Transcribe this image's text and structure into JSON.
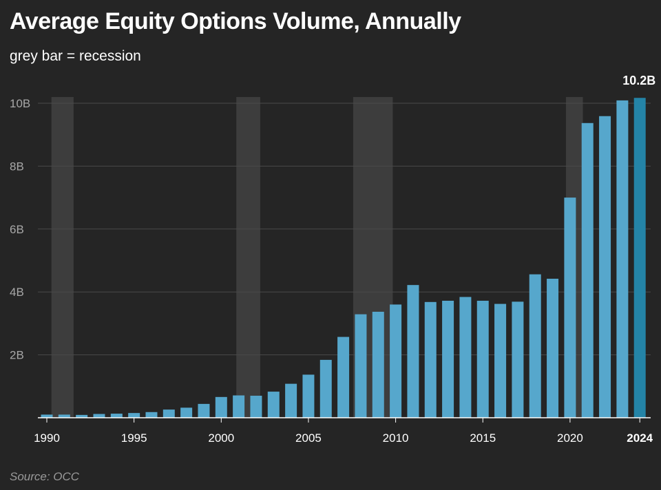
{
  "title": "Average Equity Options Volume, Annually",
  "subtitle": "grey bar = recession",
  "source": "Source: OCC",
  "colors": {
    "background": "#252525",
    "bar": "#56a7cc",
    "bar_highlight": "#2484a7",
    "recession": "#3d3d3d",
    "grid": "#4a4a4a"
  },
  "chart_data": {
    "type": "bar",
    "title": "Average Equity Options Volume, Annually",
    "subtitle": "grey bar = recession",
    "xlabel": "",
    "ylabel": "",
    "ylim": [
      0,
      10
    ],
    "unit": "B",
    "categories": [
      "1990",
      "1991",
      "1992",
      "1993",
      "1994",
      "1995",
      "1996",
      "1997",
      "1998",
      "1999",
      "2000",
      "2001",
      "2002",
      "2003",
      "2004",
      "2005",
      "2006",
      "2007",
      "2008",
      "2009",
      "2010",
      "2011",
      "2012",
      "2013",
      "2014",
      "2015",
      "2016",
      "2017",
      "2018",
      "2019",
      "2020",
      "2021",
      "2022",
      "2023",
      "2024"
    ],
    "values": [
      0.1,
      0.1,
      0.09,
      0.12,
      0.13,
      0.15,
      0.18,
      0.26,
      0.32,
      0.44,
      0.66,
      0.71,
      0.7,
      0.83,
      1.08,
      1.37,
      1.84,
      2.57,
      3.29,
      3.37,
      3.6,
      4.22,
      3.68,
      3.72,
      3.84,
      3.72,
      3.62,
      3.69,
      4.56,
      4.42,
      7.0,
      9.37,
      9.59,
      10.09,
      10.17
    ],
    "highlight_category": "2024",
    "highlight_label": "10.2B",
    "y_ticks": [
      {
        "value": 2,
        "label": "2B"
      },
      {
        "value": 4,
        "label": "4B"
      },
      {
        "value": 6,
        "label": "6B"
      },
      {
        "value": 8,
        "label": "8B"
      },
      {
        "value": 10,
        "label": "10B"
      }
    ],
    "x_ticks": [
      {
        "year": 1990,
        "label": "1990"
      },
      {
        "year": 1995,
        "label": "1995"
      },
      {
        "year": 2000,
        "label": "2000"
      },
      {
        "year": 2005,
        "label": "2005"
      },
      {
        "year": 2010,
        "label": "2010"
      },
      {
        "year": 2015,
        "label": "2015"
      },
      {
        "year": 2020,
        "label": "2020"
      },
      {
        "year": 2024,
        "label": "2024",
        "bold": true
      }
    ],
    "recessions": [
      {
        "start": 1990.6,
        "end": 1991.2
      },
      {
        "start": 2001.2,
        "end": 2001.9
      },
      {
        "start": 2007.9,
        "end": 2009.5
      },
      {
        "start": 2020.1,
        "end": 2020.4
      }
    ]
  }
}
